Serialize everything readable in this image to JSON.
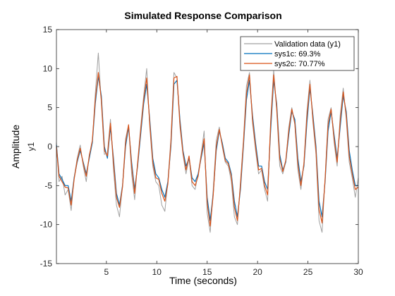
{
  "chart_data": {
    "type": "line",
    "title": "Simulated Response Comparison",
    "xlabel": "Time (seconds)",
    "ylabel": "Amplitude",
    "channel_label": "y1",
    "xlim": [
      0.04,
      30
    ],
    "ylim": [
      -15,
      15
    ],
    "xticks": [
      5,
      10,
      15,
      20,
      25,
      30
    ],
    "yticks": [
      -15,
      -10,
      -5,
      0,
      5,
      10,
      15
    ],
    "grid": false,
    "legend_position": "top-right",
    "series": [
      {
        "name": "Validation data (y1)",
        "color": "#a0a0a0",
        "x": [
          0.04,
          0.3,
          0.6,
          0.9,
          1.2,
          1.5,
          1.8,
          2.1,
          2.4,
          2.7,
          3.0,
          3.3,
          3.6,
          3.9,
          4.2,
          4.5,
          4.8,
          5.1,
          5.4,
          5.7,
          6.0,
          6.3,
          6.6,
          6.9,
          7.2,
          7.5,
          7.8,
          8.1,
          8.4,
          8.7,
          9.0,
          9.3,
          9.6,
          9.9,
          10.2,
          10.5,
          10.8,
          11.1,
          11.4,
          11.7,
          12.0,
          12.3,
          12.6,
          12.9,
          13.2,
          13.5,
          13.8,
          14.1,
          14.4,
          14.7,
          15.0,
          15.3,
          15.6,
          15.9,
          16.2,
          16.5,
          16.8,
          17.1,
          17.4,
          17.7,
          18.0,
          18.3,
          18.6,
          18.9,
          19.2,
          19.5,
          19.8,
          20.1,
          20.4,
          20.7,
          21.0,
          21.3,
          21.6,
          21.9,
          22.2,
          22.5,
          22.8,
          23.1,
          23.4,
          23.7,
          24.0,
          24.3,
          24.6,
          24.9,
          25.2,
          25.5,
          25.8,
          26.1,
          26.4,
          26.7,
          27.0,
          27.3,
          27.6,
          27.9,
          28.2,
          28.5,
          28.8,
          29.1,
          29.4,
          29.7,
          30.0
        ],
        "y": [
          0.5,
          -4.5,
          -3.8,
          -6.2,
          -5.5,
          -8.2,
          -4.0,
          -1.5,
          0.2,
          -2.5,
          -4.5,
          -1.0,
          0.5,
          6.8,
          12.0,
          5.5,
          -1.0,
          -0.8,
          3.5,
          -3.0,
          -7.5,
          -9.0,
          -5.0,
          1.0,
          2.8,
          -3.5,
          -6.8,
          -2.0,
          2.5,
          6.5,
          10.0,
          2.5,
          -2.5,
          -4.5,
          -5.0,
          -7.5,
          -8.3,
          -4.5,
          1.0,
          9.5,
          8.8,
          2.5,
          -1.0,
          -3.5,
          -1.5,
          -5.0,
          -5.5,
          -3.5,
          -1.0,
          2.0,
          -8.5,
          -11.0,
          -5.5,
          0.8,
          2.5,
          0.0,
          -2.0,
          -2.5,
          -4.5,
          -9.0,
          -10.0,
          -4.5,
          0.8,
          7.8,
          9.5,
          3.0,
          -0.5,
          -3.5,
          -3.0,
          -5.5,
          -7.0,
          3.5,
          9.8,
          4.5,
          -2.5,
          -3.5,
          -2.0,
          2.5,
          5.0,
          2.8,
          -3.0,
          -5.5,
          -2.0,
          4.5,
          8.5,
          3.0,
          -1.0,
          -9.5,
          -11.0,
          -4.0,
          3.5,
          5.0,
          0.5,
          -2.5,
          4.0,
          7.5,
          3.5,
          -2.0,
          -4.0,
          -6.5,
          -4.0
        ]
      },
      {
        "name": "sys1c: 69.3%",
        "color": "#0072bd",
        "x": [
          0.04,
          0.3,
          0.6,
          0.9,
          1.2,
          1.5,
          1.8,
          2.1,
          2.4,
          2.7,
          3.0,
          3.3,
          3.6,
          3.9,
          4.2,
          4.5,
          4.8,
          5.1,
          5.4,
          5.7,
          6.0,
          6.3,
          6.6,
          6.9,
          7.2,
          7.5,
          7.8,
          8.1,
          8.4,
          8.7,
          9.0,
          9.3,
          9.6,
          9.9,
          10.2,
          10.5,
          10.8,
          11.1,
          11.4,
          11.7,
          12.0,
          12.3,
          12.6,
          12.9,
          13.2,
          13.5,
          13.8,
          14.1,
          14.4,
          14.7,
          15.0,
          15.3,
          15.6,
          15.9,
          16.2,
          16.5,
          16.8,
          17.1,
          17.4,
          17.7,
          18.0,
          18.3,
          18.6,
          18.9,
          19.2,
          19.5,
          19.8,
          20.1,
          20.4,
          20.7,
          21.0,
          21.3,
          21.6,
          21.9,
          22.2,
          22.5,
          22.8,
          23.1,
          23.4,
          23.7,
          24.0,
          24.3,
          24.6,
          24.9,
          25.2,
          25.5,
          25.8,
          26.1,
          26.4,
          26.7,
          27.0,
          27.3,
          27.6,
          27.9,
          28.2,
          28.5,
          28.8,
          29.1,
          29.4,
          29.7,
          30.0
        ],
        "y": [
          0.2,
          -3.5,
          -4.2,
          -5.0,
          -5.0,
          -7.0,
          -4.0,
          -2.0,
          -0.5,
          -2.0,
          -3.5,
          -1.5,
          0.5,
          5.5,
          9.0,
          6.5,
          0.0,
          -1.5,
          2.5,
          -1.5,
          -6.0,
          -7.5,
          -5.0,
          0.0,
          2.5,
          -2.0,
          -5.5,
          -2.5,
          1.5,
          5.5,
          8.0,
          3.5,
          -1.5,
          -3.5,
          -4.0,
          -5.5,
          -6.5,
          -4.5,
          0.0,
          8.0,
          8.5,
          3.5,
          -0.5,
          -2.5,
          -1.5,
          -4.0,
          -4.5,
          -3.5,
          -1.5,
          0.5,
          -6.5,
          -9.5,
          -6.0,
          -0.5,
          2.0,
          0.5,
          -1.5,
          -2.0,
          -3.5,
          -7.0,
          -9.0,
          -5.5,
          0.0,
          6.0,
          8.5,
          4.0,
          0.5,
          -2.5,
          -2.5,
          -4.5,
          -5.5,
          2.0,
          8.5,
          5.5,
          -1.0,
          -3.0,
          -2.0,
          1.5,
          4.5,
          3.5,
          -1.5,
          -4.5,
          -2.5,
          3.0,
          7.5,
          4.0,
          0.0,
          -7.0,
          -9.0,
          -4.5,
          2.0,
          4.5,
          1.5,
          -1.5,
          2.5,
          6.5,
          4.5,
          -0.5,
          -3.0,
          -5.0,
          -5.0
        ]
      },
      {
        "name": "sys2c: 70.77%",
        "color": "#d95319",
        "x": [
          0.04,
          0.3,
          0.6,
          0.9,
          1.2,
          1.5,
          1.8,
          2.1,
          2.4,
          2.7,
          3.0,
          3.3,
          3.6,
          3.9,
          4.2,
          4.5,
          4.8,
          5.1,
          5.4,
          5.7,
          6.0,
          6.3,
          6.6,
          6.9,
          7.2,
          7.5,
          7.8,
          8.1,
          8.4,
          8.7,
          9.0,
          9.3,
          9.6,
          9.9,
          10.2,
          10.5,
          10.8,
          11.1,
          11.4,
          11.7,
          12.0,
          12.3,
          12.6,
          12.9,
          13.2,
          13.5,
          13.8,
          14.1,
          14.4,
          14.7,
          15.0,
          15.3,
          15.6,
          15.9,
          16.2,
          16.5,
          16.8,
          17.1,
          17.4,
          17.7,
          18.0,
          18.3,
          18.6,
          18.9,
          19.2,
          19.5,
          19.8,
          20.1,
          20.4,
          20.7,
          21.0,
          21.3,
          21.6,
          21.9,
          22.2,
          22.5,
          22.8,
          23.1,
          23.4,
          23.7,
          24.0,
          24.3,
          24.6,
          24.9,
          25.2,
          25.5,
          25.8,
          26.1,
          26.4,
          26.7,
          27.0,
          27.3,
          27.6,
          27.9,
          28.2,
          28.5,
          28.8,
          29.1,
          29.4,
          29.7,
          30.0
        ],
        "y": [
          0.0,
          -3.8,
          -4.5,
          -5.2,
          -5.3,
          -7.5,
          -4.2,
          -1.8,
          -0.2,
          -2.2,
          -3.8,
          -1.2,
          0.8,
          6.0,
          9.5,
          6.0,
          -0.5,
          -1.2,
          3.0,
          -2.0,
          -6.5,
          -7.8,
          -5.2,
          0.5,
          2.8,
          -2.5,
          -6.0,
          -2.2,
          2.0,
          6.0,
          8.8,
          3.0,
          -2.0,
          -4.0,
          -4.2,
          -6.0,
          -7.0,
          -4.8,
          0.5,
          8.8,
          9.0,
          3.0,
          -0.8,
          -3.0,
          -1.2,
          -4.5,
          -5.0,
          -3.8,
          -1.2,
          1.0,
          -7.2,
          -10.2,
          -6.2,
          0.0,
          2.2,
          0.2,
          -1.8,
          -2.2,
          -3.8,
          -7.8,
          -9.5,
          -5.0,
          0.5,
          6.8,
          9.2,
          3.5,
          0.0,
          -3.0,
          -2.8,
          -5.0,
          -6.2,
          2.8,
          9.2,
          5.0,
          -1.5,
          -3.2,
          -1.8,
          2.0,
          4.8,
          3.0,
          -2.2,
          -5.0,
          -2.2,
          3.8,
          8.0,
          3.5,
          -0.5,
          -8.0,
          -9.8,
          -4.2,
          2.8,
          4.8,
          1.0,
          -2.0,
          3.2,
          7.0,
          4.0,
          -1.2,
          -3.5,
          -5.5,
          -5.2
        ]
      }
    ]
  }
}
